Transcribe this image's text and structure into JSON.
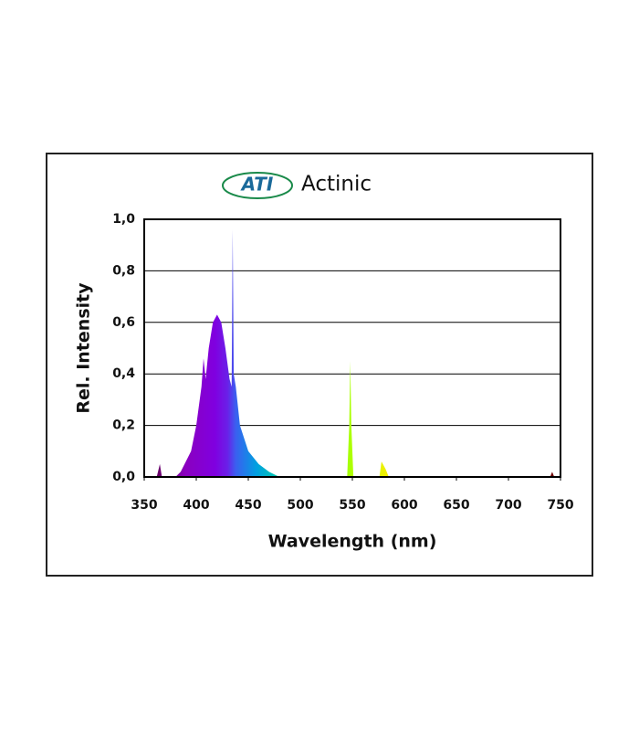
{
  "chart_data": {
    "type": "area",
    "logo": "ATI",
    "title": "Actinic",
    "xlabel": "Wavelength (nm)",
    "ylabel": "Rel. Intensity",
    "x": [
      350,
      362,
      365,
      367,
      380,
      385,
      395,
      400,
      405,
      407,
      409,
      412,
      416,
      420,
      424,
      428,
      432,
      434,
      435,
      436,
      438,
      442,
      450,
      460,
      470,
      480,
      545,
      547,
      548,
      549,
      551,
      576,
      578,
      582,
      585,
      700,
      740,
      742,
      744,
      750
    ],
    "values": [
      0,
      0,
      0.05,
      0,
      0,
      0.02,
      0.1,
      0.2,
      0.35,
      0.46,
      0.38,
      0.5,
      0.6,
      0.63,
      0.6,
      0.5,
      0.38,
      0.35,
      0.96,
      0.4,
      0.35,
      0.2,
      0.1,
      0.05,
      0.02,
      0,
      0,
      0.2,
      0.45,
      0.2,
      0,
      0,
      0.06,
      0.03,
      0,
      0,
      0,
      0.02,
      0,
      0
    ],
    "xlim": [
      350,
      750
    ],
    "xticks": [
      350,
      400,
      450,
      500,
      550,
      600,
      650,
      700,
      750
    ],
    "ylim": [
      0,
      1
    ],
    "yticks": [
      {
        "value": 0,
        "label": "0,0"
      },
      {
        "value": 0.2,
        "label": "0,2"
      },
      {
        "value": 0.4,
        "label": "0,4"
      },
      {
        "value": 0.6,
        "label": "0,6"
      },
      {
        "value": 0.8,
        "label": "0,8"
      },
      {
        "value": 1,
        "label": "1,0"
      }
    ],
    "grid": true
  }
}
